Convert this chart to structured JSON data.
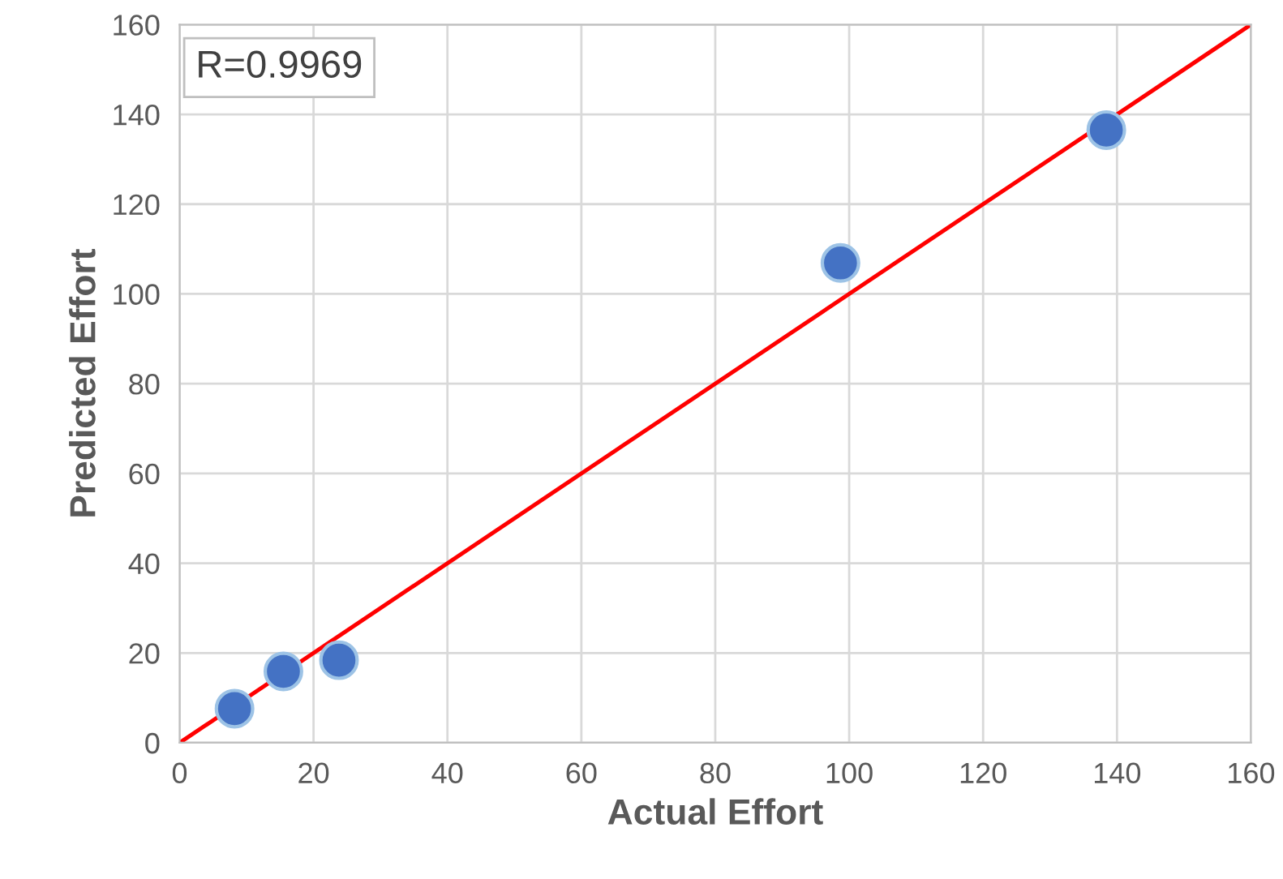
{
  "chart_data": {
    "type": "scatter",
    "xlabel": "Actual Effort",
    "ylabel": "Predicted Effort",
    "annotations": [
      "R=0.9969"
    ],
    "series": [
      {
        "marker": "circle",
        "color": "#4472c4",
        "x": [
          8.2,
          15.5,
          23.8,
          98.7,
          138.4
        ],
        "values": [
          7.6,
          15.9,
          18.4,
          106.9,
          136.5
        ]
      },
      {
        "type": "line",
        "color": "#ff0000",
        "x": [
          0,
          160
        ],
        "values": [
          0,
          160
        ]
      }
    ],
    "xlim": [
      0,
      160
    ],
    "ylim": [
      0,
      160
    ],
    "xticks": [
      0,
      20,
      40,
      60,
      80,
      100,
      120,
      140,
      160
    ],
    "yticks": [
      0,
      20,
      40,
      60,
      80,
      100,
      120,
      140,
      160
    ],
    "grid": true
  }
}
